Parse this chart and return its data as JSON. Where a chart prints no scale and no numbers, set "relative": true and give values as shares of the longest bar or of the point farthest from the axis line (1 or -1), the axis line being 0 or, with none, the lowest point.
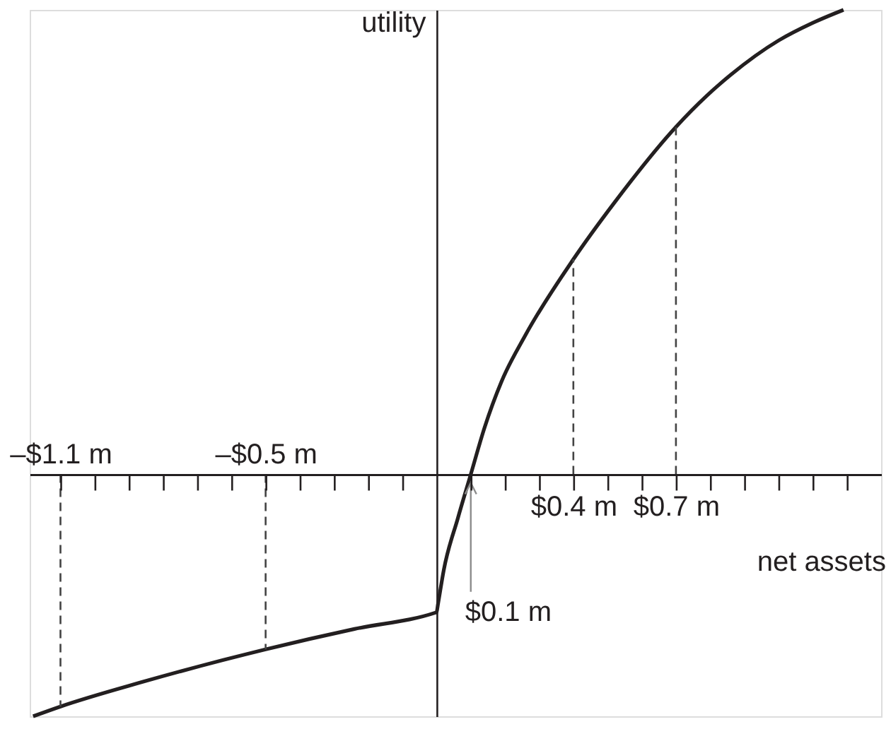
{
  "chart_data": {
    "type": "line",
    "relative": true,
    "xlabel": "net assets",
    "ylabel": "utility",
    "xlim": [
      -1.19,
      1.3
    ],
    "xticks": [
      {
        "value": -1.1,
        "label": null
      },
      {
        "value": -1.0,
        "label": null
      },
      {
        "value": -0.9,
        "label": null
      },
      {
        "value": -0.8,
        "label": null
      },
      {
        "value": -0.7,
        "label": null
      },
      {
        "value": -0.6,
        "label": null
      },
      {
        "value": -0.5,
        "label": null
      },
      {
        "value": -0.4,
        "label": null
      },
      {
        "value": -0.3,
        "label": null
      },
      {
        "value": -0.2,
        "label": null
      },
      {
        "value": -0.1,
        "label": null
      },
      {
        "value": 0.1,
        "label": null
      },
      {
        "value": 0.2,
        "label": null
      },
      {
        "value": 0.3,
        "label": null
      },
      {
        "value": 0.4,
        "label": "$0.4 m"
      },
      {
        "value": 0.5,
        "label": null
      },
      {
        "value": 0.6,
        "label": null
      },
      {
        "value": 0.7,
        "label": "$0.7 m"
      },
      {
        "value": 0.8,
        "label": null
      },
      {
        "value": 0.9,
        "label": null
      },
      {
        "value": 1.0,
        "label": null
      },
      {
        "value": 1.1,
        "label": null
      },
      {
        "value": 1.2,
        "label": null
      }
    ],
    "x2lim": [
      -1.19,
      1.3
    ],
    "x2ticks": [
      {
        "value": -1.1,
        "label": "–$1.1 m"
      },
      {
        "value": -0.5,
        "label": "–$0.5 m"
      }
    ],
    "series": [
      {
        "color": "#231f20",
        "line_style": "solid",
        "x": [
          -1.18,
          -1.1,
          -0.86,
          -0.5,
          -0.24,
          -0.004,
          0,
          0.004,
          0.021,
          0.062,
          0.1,
          0.14,
          0.19,
          0.26,
          0.4,
          0.52,
          0.7,
          0.79,
          0.86,
          1.0,
          1.1,
          1.19
        ],
        "values": [
          -0.521,
          -0.5,
          -0.447,
          -0.377,
          -0.333,
          -0.298,
          -0.297,
          -0.28,
          -0.206,
          -0.095,
          0,
          0.1,
          0.2,
          0.3,
          0.463,
          0.585,
          0.748,
          0.815,
          0.86,
          0.934,
          0.972,
          1.0
        ]
      },
      {
        "color": "#444444",
        "line_style": "dashed",
        "x": [
          -1.1,
          -1.1
        ],
        "values": [
          0,
          -0.5
        ]
      },
      {
        "color": "#444444",
        "line_style": "dashed",
        "x": [
          -0.5,
          -0.5
        ],
        "values": [
          0,
          -0.377
        ]
      },
      {
        "color": "#444444",
        "line_style": "dashed",
        "x": [
          0.4,
          0.4
        ],
        "values": [
          0,
          0.463
        ]
      },
      {
        "color": "#444444",
        "line_style": "dashed",
        "x": [
          0.7,
          0.7
        ],
        "values": [
          0,
          0.748
        ]
      }
    ],
    "annotations": [
      {
        "text": "$0.1 m",
        "x": 0.1,
        "y": 0
      }
    ]
  }
}
